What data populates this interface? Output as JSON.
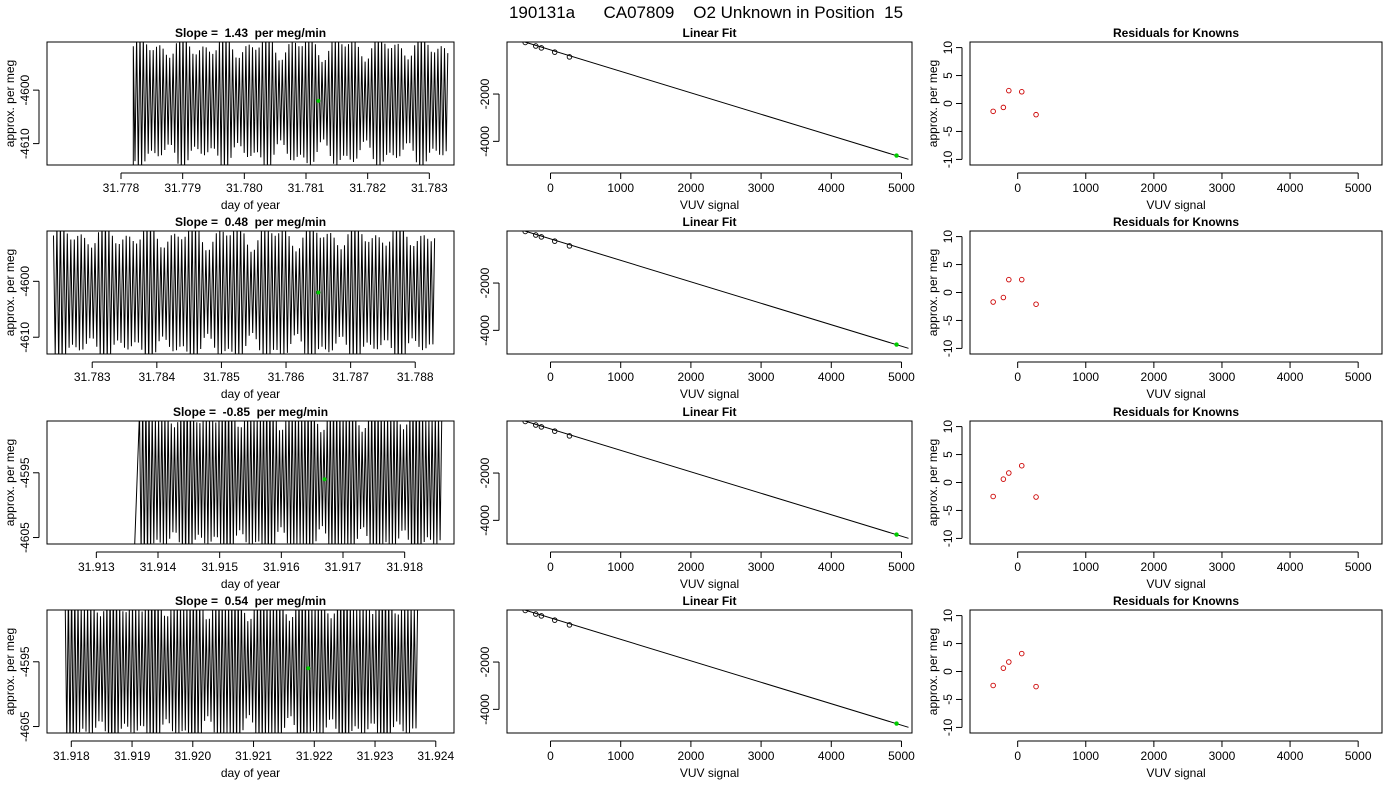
{
  "suptitle": "190131a      CA07809    O2 Unknown in Position  15",
  "colors": {
    "trace": "#000000",
    "known_point": "#cc0000",
    "unknown_point": "#00cc00",
    "fit_line": "#000000"
  },
  "chart_data": [
    {
      "type": "line",
      "panel": "row1-time",
      "title": "Slope =  1.43  per meg/min",
      "xlabel": "day of year",
      "ylabel": "approx. per meg",
      "xlim": [
        31.7768,
        31.7834
      ],
      "ylim": [
        -4614,
        -4591
      ],
      "xticks": [
        "31.778",
        "31.779",
        "31.780",
        "31.781",
        "31.782",
        "31.783"
      ],
      "yticks": [
        "-4600",
        "-4610"
      ],
      "signal": {
        "x_start": 31.7782,
        "x_end": 31.7833,
        "mean": -4602,
        "amp": 12,
        "cycles": 95,
        "lead": {
          "x": 31.7782,
          "y": -4620
        }
      },
      "unknown_point": {
        "x": 31.7812,
        "y": -4602
      }
    },
    {
      "type": "scatter",
      "panel": "row1-fit",
      "title": "Linear Fit",
      "xlabel": "VUV signal",
      "ylabel": "",
      "xlim": [
        -620,
        5150
      ],
      "ylim": [
        -5000,
        200
      ],
      "xticks": [
        "0",
        "1000",
        "2000",
        "3000",
        "4000",
        "5000"
      ],
      "yticks": [
        "-2000",
        "-4000"
      ],
      "knowns": [
        {
          "x": -360,
          "y": 180
        },
        {
          "x": -210,
          "y": 30
        },
        {
          "x": -130,
          "y": -50
        },
        {
          "x": 60,
          "y": -230
        },
        {
          "x": 270,
          "y": -430
        }
      ],
      "unknown": {
        "x": 4930,
        "y": -4600
      },
      "fit": {
        "x": [
          -500,
          5100
        ],
        "y": [
          320,
          -4760
        ]
      }
    },
    {
      "type": "scatter",
      "panel": "row1-residuals",
      "title": "Residuals for Knowns",
      "xlabel": "VUV signal",
      "ylabel": "approx. per meg",
      "xlim": [
        -700,
        5350
      ],
      "ylim": [
        -11,
        11
      ],
      "xticks": [
        "0",
        "1000",
        "2000",
        "3000",
        "4000",
        "5000"
      ],
      "yticks": [
        "10",
        "5",
        "0",
        "-5",
        "-10"
      ],
      "points": [
        {
          "x": -360,
          "y": -1.4
        },
        {
          "x": -210,
          "y": -0.7
        },
        {
          "x": -130,
          "y": 2.3
        },
        {
          "x": 60,
          "y": 2.1
        },
        {
          "x": 270,
          "y": -2.0
        }
      ]
    },
    {
      "type": "line",
      "panel": "row2-time",
      "title": "Slope =  0.48  per meg/min",
      "xlabel": "day of year",
      "ylabel": "approx. per meg",
      "xlim": [
        31.7823,
        31.7886
      ],
      "ylim": [
        -4613,
        -4591
      ],
      "xticks": [
        "31.783",
        "31.784",
        "31.785",
        "31.786",
        "31.787",
        "31.788"
      ],
      "yticks": [
        "-4600",
        "-4610"
      ],
      "signal": {
        "x_start": 31.7824,
        "x_end": 31.7883,
        "mean": -4602,
        "amp": 12,
        "cycles": 110
      },
      "unknown_point": {
        "x": 31.7865,
        "y": -4602
      }
    },
    {
      "type": "scatter",
      "panel": "row2-fit",
      "title": "Linear Fit",
      "xlabel": "VUV signal",
      "ylabel": "",
      "xlim": [
        -620,
        5150
      ],
      "ylim": [
        -5000,
        200
      ],
      "xticks": [
        "0",
        "1000",
        "2000",
        "3000",
        "4000",
        "5000"
      ],
      "yticks": [
        "-2000",
        "-4000"
      ],
      "knowns": [
        {
          "x": -360,
          "y": 180
        },
        {
          "x": -210,
          "y": 30
        },
        {
          "x": -130,
          "y": -50
        },
        {
          "x": 60,
          "y": -230
        },
        {
          "x": 270,
          "y": -430
        }
      ],
      "unknown": {
        "x": 4930,
        "y": -4600
      },
      "fit": {
        "x": [
          -500,
          5100
        ],
        "y": [
          320,
          -4760
        ]
      }
    },
    {
      "type": "scatter",
      "panel": "row2-residuals",
      "title": "Residuals for Knowns",
      "xlabel": "VUV signal",
      "ylabel": "approx. per meg",
      "xlim": [
        -700,
        5350
      ],
      "ylim": [
        -11,
        11
      ],
      "xticks": [
        "0",
        "1000",
        "2000",
        "3000",
        "4000",
        "5000"
      ],
      "yticks": [
        "10",
        "5",
        "0",
        "-5",
        "-10"
      ],
      "points": [
        {
          "x": -360,
          "y": -1.7
        },
        {
          "x": -210,
          "y": -0.9
        },
        {
          "x": -130,
          "y": 2.3
        },
        {
          "x": 60,
          "y": 2.3
        },
        {
          "x": 270,
          "y": -2.1
        }
      ]
    },
    {
      "type": "line",
      "panel": "row3-time",
      "title": "Slope =  -0.85  per meg/min",
      "xlabel": "day of year",
      "ylabel": "approx. per meg",
      "xlim": [
        31.9122,
        31.9188
      ],
      "ylim": [
        -4606,
        -4587
      ],
      "xticks": [
        "31.913",
        "31.914",
        "31.915",
        "31.916",
        "31.917",
        "31.918"
      ],
      "yticks": [
        "-4595",
        "-4605"
      ],
      "signal": {
        "x_start": 31.9137,
        "x_end": 31.9186,
        "mean": -4596,
        "amp": 12,
        "cycles": 95,
        "lead": {
          "x": 31.9136,
          "y": -4612
        }
      },
      "unknown_point": {
        "x": 31.9167,
        "y": -4596
      }
    },
    {
      "type": "scatter",
      "panel": "row3-fit",
      "title": "Linear Fit",
      "xlabel": "VUV signal",
      "ylabel": "",
      "xlim": [
        -620,
        5150
      ],
      "ylim": [
        -5000,
        200
      ],
      "xticks": [
        "0",
        "1000",
        "2000",
        "3000",
        "4000",
        "5000"
      ],
      "yticks": [
        "-2000",
        "-4000"
      ],
      "knowns": [
        {
          "x": -360,
          "y": 180
        },
        {
          "x": -210,
          "y": 30
        },
        {
          "x": -130,
          "y": -50
        },
        {
          "x": 60,
          "y": -230
        },
        {
          "x": 270,
          "y": -430
        }
      ],
      "unknown": {
        "x": 4930,
        "y": -4600
      },
      "fit": {
        "x": [
          -500,
          5100
        ],
        "y": [
          320,
          -4760
        ]
      }
    },
    {
      "type": "scatter",
      "panel": "row3-residuals",
      "title": "Residuals for Knowns",
      "xlabel": "VUV signal",
      "ylabel": "approx. per meg",
      "xlim": [
        -700,
        5350
      ],
      "ylim": [
        -11,
        11
      ],
      "xticks": [
        "0",
        "1000",
        "2000",
        "3000",
        "4000",
        "5000"
      ],
      "yticks": [
        "10",
        "5",
        "0",
        "-5",
        "-10"
      ],
      "points": [
        {
          "x": -360,
          "y": -2.5
        },
        {
          "x": -210,
          "y": 0.6
        },
        {
          "x": -130,
          "y": 1.7
        },
        {
          "x": 60,
          "y": 3.0
        },
        {
          "x": 270,
          "y": -2.6
        }
      ]
    },
    {
      "type": "line",
      "panel": "row4-time",
      "title": "Slope =  0.54  per meg/min",
      "xlabel": "day of year",
      "ylabel": "approx. per meg",
      "xlim": [
        31.9176,
        31.9243
      ],
      "ylim": [
        -4606,
        -4587
      ],
      "xticks": [
        "31.918",
        "31.919",
        "31.920",
        "31.921",
        "31.922",
        "31.923",
        "31.924"
      ],
      "yticks": [
        "-4595",
        "-4605"
      ],
      "signal": {
        "x_start": 31.9179,
        "x_end": 31.9237,
        "mean": -4596,
        "amp": 12,
        "cycles": 110
      },
      "unknown_point": {
        "x": 31.9219,
        "y": -4596
      }
    },
    {
      "type": "scatter",
      "panel": "row4-fit",
      "title": "Linear Fit",
      "xlabel": "VUV signal",
      "ylabel": "",
      "xlim": [
        -620,
        5150
      ],
      "ylim": [
        -5000,
        200
      ],
      "xticks": [
        "0",
        "1000",
        "2000",
        "3000",
        "4000",
        "5000"
      ],
      "yticks": [
        "-2000",
        "-4000"
      ],
      "knowns": [
        {
          "x": -360,
          "y": 180
        },
        {
          "x": -210,
          "y": 30
        },
        {
          "x": -130,
          "y": -50
        },
        {
          "x": 60,
          "y": -230
        },
        {
          "x": 270,
          "y": -430
        }
      ],
      "unknown": {
        "x": 4930,
        "y": -4600
      },
      "fit": {
        "x": [
          -500,
          5100
        ],
        "y": [
          320,
          -4760
        ]
      }
    },
    {
      "type": "scatter",
      "panel": "row4-residuals",
      "title": "Residuals for Knowns",
      "xlabel": "VUV signal",
      "ylabel": "approx. per meg",
      "xlim": [
        -700,
        5350
      ],
      "ylim": [
        -11,
        11
      ],
      "xticks": [
        "0",
        "1000",
        "2000",
        "3000",
        "4000",
        "5000"
      ],
      "yticks": [
        "10",
        "5",
        "0",
        "-5",
        "-10"
      ],
      "points": [
        {
          "x": -360,
          "y": -2.5
        },
        {
          "x": -210,
          "y": 0.6
        },
        {
          "x": -130,
          "y": 1.7
        },
        {
          "x": 60,
          "y": 3.2
        },
        {
          "x": 270,
          "y": -2.7
        }
      ]
    }
  ]
}
